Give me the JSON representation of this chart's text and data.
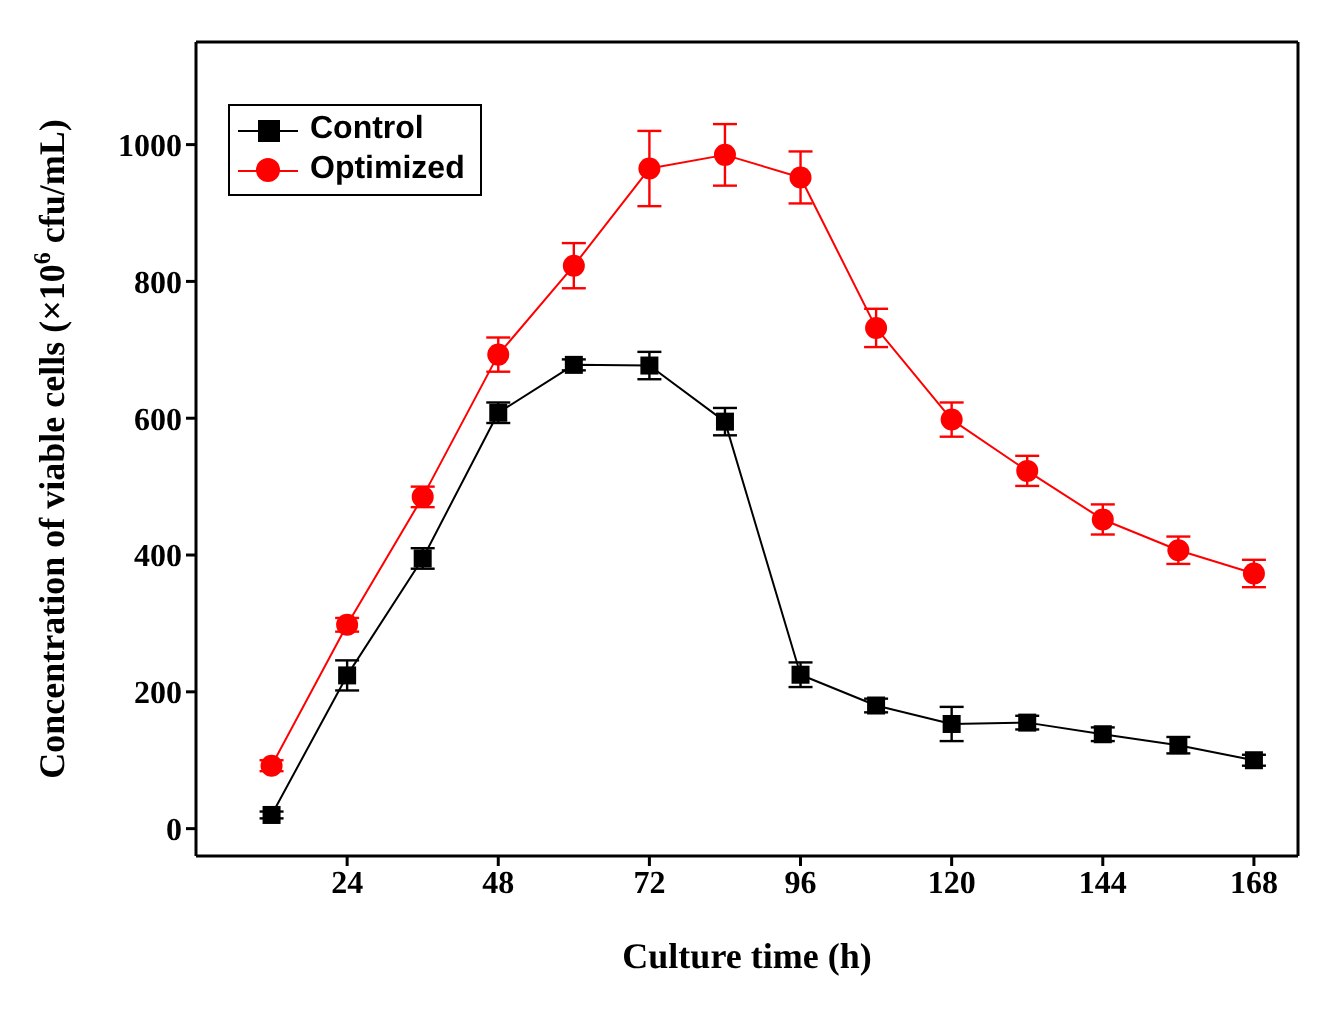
{
  "chart_data": {
    "type": "line",
    "xlabel": "Culture time (h)",
    "ylabel": "Concentration of viable cells (×10$^{6}$ cfu/mL)",
    "x": [
      12,
      24,
      36,
      48,
      60,
      72,
      84,
      96,
      108,
      120,
      132,
      144,
      156,
      168
    ],
    "series": [
      {
        "name": "Control",
        "color": "#000000",
        "marker": "square",
        "values": [
          20,
          224,
          395,
          608,
          678,
          677,
          595,
          225,
          180,
          153,
          155,
          138,
          122,
          100
        ],
        "errors": [
          5,
          22,
          15,
          15,
          8,
          20,
          20,
          18,
          10,
          25,
          10,
          10,
          12,
          8
        ]
      },
      {
        "name": "Optimized",
        "color": "#ff0000",
        "marker": "circle",
        "values": [
          92,
          298,
          485,
          693,
          823,
          965,
          985,
          952,
          732,
          598,
          523,
          452,
          407,
          373
        ],
        "errors": [
          8,
          10,
          15,
          25,
          33,
          55,
          45,
          38,
          28,
          25,
          22,
          22,
          20,
          20
        ]
      }
    ],
    "xlim": [
      0,
      175
    ],
    "xticks": [
      24,
      48,
      72,
      96,
      120,
      144,
      168
    ],
    "ylim": [
      -40,
      1150
    ],
    "yticks": [
      0,
      200,
      400,
      600,
      800,
      1000
    ],
    "legend": "top left",
    "line_style": "solid"
  }
}
